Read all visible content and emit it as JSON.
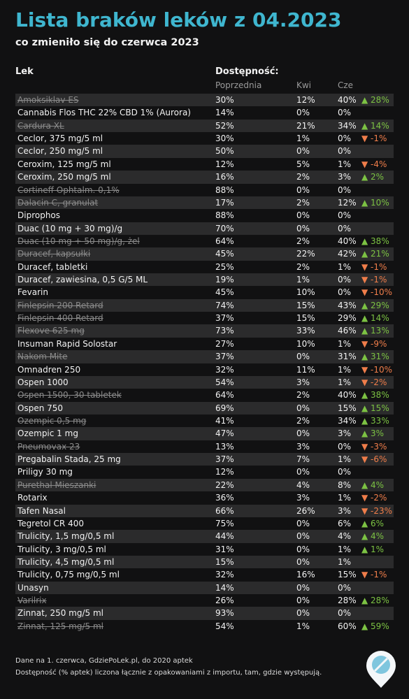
{
  "header": {
    "title": "Lista braków leków z 04.2023",
    "subtitle": "co zmieniło się do czerwca 2023"
  },
  "table": {
    "headers": {
      "name": "Lek",
      "availability": "Dostępność:",
      "prev": "Poprzednia",
      "apr": "Kwi",
      "jun": "Cze"
    },
    "rows": [
      {
        "name": "Amoksiklav ES",
        "struck": true,
        "prev": "30%",
        "apr": "12%",
        "jun": "40%",
        "change": "▲ 28%"
      },
      {
        "name": "Cannabis Flos THC 22% CBD 1% (Aurora)",
        "prev": "14%",
        "apr": "0%",
        "jun": "0%"
      },
      {
        "name": "Cardura XL",
        "struck": true,
        "prev": "52%",
        "apr": "21%",
        "jun": "34%",
        "change": "▲ 14%"
      },
      {
        "name": "Ceclor, 375 mg/5 ml",
        "prev": "30%",
        "apr": "1%",
        "jun": "0%",
        "change": "▼ -1%"
      },
      {
        "name": "Ceclor, 250 mg/5 ml",
        "prev": "50%",
        "apr": "0%",
        "jun": "0%"
      },
      {
        "name": "Ceroxim, 125 mg/5 ml",
        "prev": "12%",
        "apr": "5%",
        "jun": "1%",
        "change": "▼ -4%"
      },
      {
        "name": "Ceroxim, 250 mg/5 ml",
        "prev": "16%",
        "apr": "2%",
        "jun": "3%",
        "change": "▲ 2%"
      },
      {
        "name": "Cortineff Ophtalm. 0,1%",
        "struck": true,
        "prev": "88%",
        "apr": "0%",
        "jun": "0%"
      },
      {
        "name": "Dalacin C, granulat",
        "struck": true,
        "prev": "17%",
        "apr": "2%",
        "jun": "12%",
        "change": "▲ 10%"
      },
      {
        "name": "Diprophos",
        "prev": "88%",
        "apr": "0%",
        "jun": "0%"
      },
      {
        "name": "Duac (10 mg + 30 mg)/g",
        "prev": "70%",
        "apr": "0%",
        "jun": "0%"
      },
      {
        "name": "Duac (10 mg + 50 mg)/g, żel",
        "struck": true,
        "prev": "64%",
        "apr": "2%",
        "jun": "40%",
        "change": "▲ 38%"
      },
      {
        "name": "Duracef, kapsułki",
        "struck": true,
        "prev": "45%",
        "apr": "22%",
        "jun": "42%",
        "change": "▲ 21%"
      },
      {
        "name": "Duracef, tabletki",
        "prev": "25%",
        "apr": "2%",
        "jun": "1%",
        "change": "▼ -1%"
      },
      {
        "name": "Duracef, zawiesina, 0,5 G/5 ML",
        "prev": "19%",
        "apr": "1%",
        "jun": "0%",
        "change": "▼ -1%"
      },
      {
        "name": "Fevarin",
        "prev": "45%",
        "apr": "10%",
        "jun": "0%",
        "change": "▼ -10%"
      },
      {
        "name": "Finlepsin 200 Retard",
        "struck": true,
        "prev": "74%",
        "apr": "15%",
        "jun": "43%",
        "change": "▲ 29%"
      },
      {
        "name": "Finlepsin 400 Retard",
        "struck": true,
        "prev": "37%",
        "apr": "15%",
        "jun": "29%",
        "change": "▲ 14%"
      },
      {
        "name": "Flexove 625 mg",
        "struck": true,
        "prev": "73%",
        "apr": "33%",
        "jun": "46%",
        "change": "▲ 13%"
      },
      {
        "name": "Insuman Rapid Solostar",
        "prev": "27%",
        "apr": "10%",
        "jun": "1%",
        "change": "▼ -9%"
      },
      {
        "name": "Nakom Mite",
        "struck": true,
        "prev": "37%",
        "apr": "0%",
        "jun": "31%",
        "change": "▲ 31%"
      },
      {
        "name": "Omnadren 250",
        "prev": "32%",
        "apr": "11%",
        "jun": "1%",
        "change": "▼ -10%"
      },
      {
        "name": "Ospen 1000",
        "prev": "54%",
        "apr": "3%",
        "jun": "1%",
        "change": "▼ -2%"
      },
      {
        "name": "Ospen 1500, 30 tabletek",
        "struck": true,
        "prev": "64%",
        "apr": "2%",
        "jun": "40%",
        "change": "▲ 38%"
      },
      {
        "name": "Ospen 750",
        "prev": "69%",
        "apr": "0%",
        "jun": "15%",
        "change": "▲ 15%"
      },
      {
        "name": "Ozempic 0,5 mg",
        "struck": true,
        "prev": "41%",
        "apr": "2%",
        "jun": "34%",
        "change": "▲ 33%"
      },
      {
        "name": "Ozempic 1 mg",
        "prev": "47%",
        "apr": "0%",
        "jun": "3%",
        "change": "▲ 3%"
      },
      {
        "name": "Pneumovax 23",
        "struck": true,
        "prev": "13%",
        "apr": "3%",
        "jun": "0%",
        "change": "▼ -3%"
      },
      {
        "name": "Pregabalin Stada, 25 mg",
        "prev": "37%",
        "apr": "7%",
        "jun": "1%",
        "change": "▼ -6%"
      },
      {
        "name": "Priligy 30 mg",
        "prev": "12%",
        "apr": "0%",
        "jun": "0%"
      },
      {
        "name": "Purethal Mieszanki",
        "struck": true,
        "prev": "22%",
        "apr": "4%",
        "jun": "8%",
        "change": "▲ 4%"
      },
      {
        "name": "Rotarix",
        "prev": "36%",
        "apr": "3%",
        "jun": "1%",
        "change": "▼ -2%"
      },
      {
        "name": "Tafen Nasal",
        "prev": "66%",
        "apr": "26%",
        "jun": "3%",
        "change": "▼ -23%"
      },
      {
        "name": "Tegretol CR 400",
        "prev": "75%",
        "apr": "0%",
        "jun": "6%",
        "change": "▲ 6%"
      },
      {
        "name": "Trulicity, 1,5 mg/0,5 ml",
        "prev": "44%",
        "apr": "0%",
        "jun": "4%",
        "change": "▲ 4%"
      },
      {
        "name": "Trulicity, 3 mg/0,5 ml",
        "prev": "31%",
        "apr": "0%",
        "jun": "1%",
        "change": "▲ 1%"
      },
      {
        "name": "Trulicity, 4,5 mg/0,5 ml",
        "prev": "15%",
        "apr": "0%",
        "jun": "1%"
      },
      {
        "name": "Trulicity, 0,75 mg/0,5 ml",
        "prev": "32%",
        "apr": "16%",
        "jun": "15%",
        "change": "▼ -1%"
      },
      {
        "name": "Unasyn",
        "prev": "14%",
        "apr": "0%",
        "jun": "0%"
      },
      {
        "name": "Varilrix",
        "struck": true,
        "prev": "26%",
        "apr": "0%",
        "jun": "28%",
        "change": "▲ 28%"
      },
      {
        "name": "Zinnat, 250 mg/5 ml",
        "prev": "93%",
        "apr": "0%",
        "jun": "0%"
      },
      {
        "name": "Zinnat, 125 mg/5 ml",
        "struck": true,
        "prev": "54%",
        "apr": "1%",
        "jun": "60%",
        "change": "▲ 59%"
      }
    ]
  },
  "footer": {
    "lines": [
      "Dane na 1. czerwca, GdziePoLek.pl, do 2020 aptek",
      "Dostępność (% aptek) liczona łącznie z opakowaniami z importu, tam, gdzie występują."
    ]
  }
}
